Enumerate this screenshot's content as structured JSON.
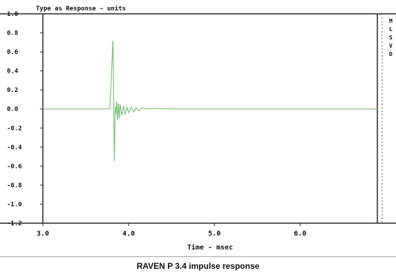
{
  "figure": {
    "caption": "RAVEN P 3.4 impulse response"
  },
  "chart_data": {
    "type": "line",
    "title": "Type as Response - units",
    "xlabel": "Time - msec",
    "ylabel": "",
    "xlim": [
      3.0,
      6.9
    ],
    "ylim": [
      -1.2,
      1.0
    ],
    "xticks": [
      3.0,
      4.0,
      5.0,
      6.0
    ],
    "xtick_labels": [
      "3.0",
      "4.0",
      "5.0",
      "6.0"
    ],
    "yticks": [
      1.0,
      0.8,
      0.6,
      0.4,
      0.2,
      0.0,
      -0.2,
      -0.4,
      -0.6,
      -0.8,
      -1.0,
      -1.2
    ],
    "ytick_labels": [
      "1.0",
      "0.8",
      "0.6",
      "0.4",
      "0.2",
      "0.0",
      "-0.2",
      "-0.4",
      "-0.6",
      "-0.8",
      "-1.0",
      "-1.2"
    ],
    "right_labels": [
      "M",
      "L",
      "S",
      "V",
      "D"
    ],
    "grid": false,
    "line_color": "#7fbf7f",
    "series": [
      {
        "x": [
          3.0,
          3.78,
          3.8,
          3.81,
          3.815,
          3.82,
          3.825,
          3.83,
          3.835,
          3.84,
          3.845,
          3.85,
          3.86,
          3.87,
          3.88,
          3.89,
          3.9,
          3.92,
          3.94,
          3.96,
          3.98,
          4.0,
          4.03,
          4.06,
          4.09,
          4.12,
          4.15,
          4.2,
          4.3,
          4.5,
          4.7,
          5.0,
          5.5,
          6.0,
          6.5,
          6.9
        ],
        "y": [
          0.0,
          0.0,
          0.35,
          0.58,
          0.72,
          0.62,
          0.15,
          -0.35,
          -0.55,
          -0.2,
          0.02,
          -0.05,
          0.08,
          -0.12,
          0.06,
          -0.1,
          0.05,
          -0.07,
          0.03,
          -0.06,
          0.02,
          -0.04,
          0.02,
          -0.03,
          0.015,
          -0.02,
          0.01,
          0.0,
          0.005,
          0.0,
          0.0,
          0.0,
          0.0,
          0.0,
          0.0,
          0.0
        ]
      }
    ]
  }
}
